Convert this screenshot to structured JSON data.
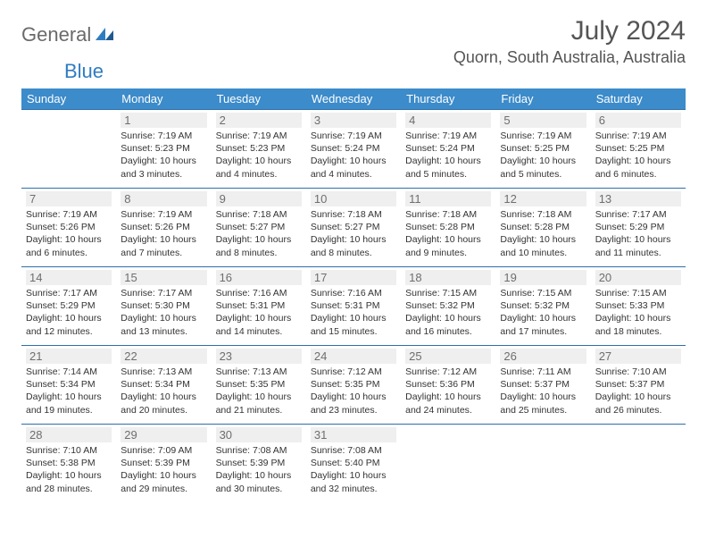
{
  "logo": {
    "general": "General",
    "blue": "Blue"
  },
  "title": "July 2024",
  "location": "Quorn, South Australia, Australia",
  "colors": {
    "header_bg": "#3c8bca",
    "header_text": "#ffffff",
    "row_border": "#2f6faa",
    "daynum_bg": "#efefef",
    "daynum_text": "#6e6e6e",
    "logo_gray": "#6a6a6a",
    "logo_blue": "#2f7dc0",
    "body_text": "#333333",
    "background": "#ffffff"
  },
  "typography": {
    "title_fontsize": 30,
    "location_fontsize": 18,
    "header_fontsize": 13,
    "daynum_fontsize": 13,
    "info_fontsize": 10.5,
    "font_family": "Arial"
  },
  "weekdays": [
    "Sunday",
    "Monday",
    "Tuesday",
    "Wednesday",
    "Thursday",
    "Friday",
    "Saturday"
  ],
  "weeks": [
    [
      {
        "empty": true
      },
      {
        "day": "1",
        "sunrise": "Sunrise: 7:19 AM",
        "sunset": "Sunset: 5:23 PM",
        "daylight": "Daylight: 10 hours and 3 minutes."
      },
      {
        "day": "2",
        "sunrise": "Sunrise: 7:19 AM",
        "sunset": "Sunset: 5:23 PM",
        "daylight": "Daylight: 10 hours and 4 minutes."
      },
      {
        "day": "3",
        "sunrise": "Sunrise: 7:19 AM",
        "sunset": "Sunset: 5:24 PM",
        "daylight": "Daylight: 10 hours and 4 minutes."
      },
      {
        "day": "4",
        "sunrise": "Sunrise: 7:19 AM",
        "sunset": "Sunset: 5:24 PM",
        "daylight": "Daylight: 10 hours and 5 minutes."
      },
      {
        "day": "5",
        "sunrise": "Sunrise: 7:19 AM",
        "sunset": "Sunset: 5:25 PM",
        "daylight": "Daylight: 10 hours and 5 minutes."
      },
      {
        "day": "6",
        "sunrise": "Sunrise: 7:19 AM",
        "sunset": "Sunset: 5:25 PM",
        "daylight": "Daylight: 10 hours and 6 minutes."
      }
    ],
    [
      {
        "day": "7",
        "sunrise": "Sunrise: 7:19 AM",
        "sunset": "Sunset: 5:26 PM",
        "daylight": "Daylight: 10 hours and 6 minutes."
      },
      {
        "day": "8",
        "sunrise": "Sunrise: 7:19 AM",
        "sunset": "Sunset: 5:26 PM",
        "daylight": "Daylight: 10 hours and 7 minutes."
      },
      {
        "day": "9",
        "sunrise": "Sunrise: 7:18 AM",
        "sunset": "Sunset: 5:27 PM",
        "daylight": "Daylight: 10 hours and 8 minutes."
      },
      {
        "day": "10",
        "sunrise": "Sunrise: 7:18 AM",
        "sunset": "Sunset: 5:27 PM",
        "daylight": "Daylight: 10 hours and 8 minutes."
      },
      {
        "day": "11",
        "sunrise": "Sunrise: 7:18 AM",
        "sunset": "Sunset: 5:28 PM",
        "daylight": "Daylight: 10 hours and 9 minutes."
      },
      {
        "day": "12",
        "sunrise": "Sunrise: 7:18 AM",
        "sunset": "Sunset: 5:28 PM",
        "daylight": "Daylight: 10 hours and 10 minutes."
      },
      {
        "day": "13",
        "sunrise": "Sunrise: 7:17 AM",
        "sunset": "Sunset: 5:29 PM",
        "daylight": "Daylight: 10 hours and 11 minutes."
      }
    ],
    [
      {
        "day": "14",
        "sunrise": "Sunrise: 7:17 AM",
        "sunset": "Sunset: 5:29 PM",
        "daylight": "Daylight: 10 hours and 12 minutes."
      },
      {
        "day": "15",
        "sunrise": "Sunrise: 7:17 AM",
        "sunset": "Sunset: 5:30 PM",
        "daylight": "Daylight: 10 hours and 13 minutes."
      },
      {
        "day": "16",
        "sunrise": "Sunrise: 7:16 AM",
        "sunset": "Sunset: 5:31 PM",
        "daylight": "Daylight: 10 hours and 14 minutes."
      },
      {
        "day": "17",
        "sunrise": "Sunrise: 7:16 AM",
        "sunset": "Sunset: 5:31 PM",
        "daylight": "Daylight: 10 hours and 15 minutes."
      },
      {
        "day": "18",
        "sunrise": "Sunrise: 7:15 AM",
        "sunset": "Sunset: 5:32 PM",
        "daylight": "Daylight: 10 hours and 16 minutes."
      },
      {
        "day": "19",
        "sunrise": "Sunrise: 7:15 AM",
        "sunset": "Sunset: 5:32 PM",
        "daylight": "Daylight: 10 hours and 17 minutes."
      },
      {
        "day": "20",
        "sunrise": "Sunrise: 7:15 AM",
        "sunset": "Sunset: 5:33 PM",
        "daylight": "Daylight: 10 hours and 18 minutes."
      }
    ],
    [
      {
        "day": "21",
        "sunrise": "Sunrise: 7:14 AM",
        "sunset": "Sunset: 5:34 PM",
        "daylight": "Daylight: 10 hours and 19 minutes."
      },
      {
        "day": "22",
        "sunrise": "Sunrise: 7:13 AM",
        "sunset": "Sunset: 5:34 PM",
        "daylight": "Daylight: 10 hours and 20 minutes."
      },
      {
        "day": "23",
        "sunrise": "Sunrise: 7:13 AM",
        "sunset": "Sunset: 5:35 PM",
        "daylight": "Daylight: 10 hours and 21 minutes."
      },
      {
        "day": "24",
        "sunrise": "Sunrise: 7:12 AM",
        "sunset": "Sunset: 5:35 PM",
        "daylight": "Daylight: 10 hours and 23 minutes."
      },
      {
        "day": "25",
        "sunrise": "Sunrise: 7:12 AM",
        "sunset": "Sunset: 5:36 PM",
        "daylight": "Daylight: 10 hours and 24 minutes."
      },
      {
        "day": "26",
        "sunrise": "Sunrise: 7:11 AM",
        "sunset": "Sunset: 5:37 PM",
        "daylight": "Daylight: 10 hours and 25 minutes."
      },
      {
        "day": "27",
        "sunrise": "Sunrise: 7:10 AM",
        "sunset": "Sunset: 5:37 PM",
        "daylight": "Daylight: 10 hours and 26 minutes."
      }
    ],
    [
      {
        "day": "28",
        "sunrise": "Sunrise: 7:10 AM",
        "sunset": "Sunset: 5:38 PM",
        "daylight": "Daylight: 10 hours and 28 minutes."
      },
      {
        "day": "29",
        "sunrise": "Sunrise: 7:09 AM",
        "sunset": "Sunset: 5:39 PM",
        "daylight": "Daylight: 10 hours and 29 minutes."
      },
      {
        "day": "30",
        "sunrise": "Sunrise: 7:08 AM",
        "sunset": "Sunset: 5:39 PM",
        "daylight": "Daylight: 10 hours and 30 minutes."
      },
      {
        "day": "31",
        "sunrise": "Sunrise: 7:08 AM",
        "sunset": "Sunset: 5:40 PM",
        "daylight": "Daylight: 10 hours and 32 minutes."
      },
      {
        "empty": true
      },
      {
        "empty": true
      },
      {
        "empty": true
      }
    ]
  ]
}
